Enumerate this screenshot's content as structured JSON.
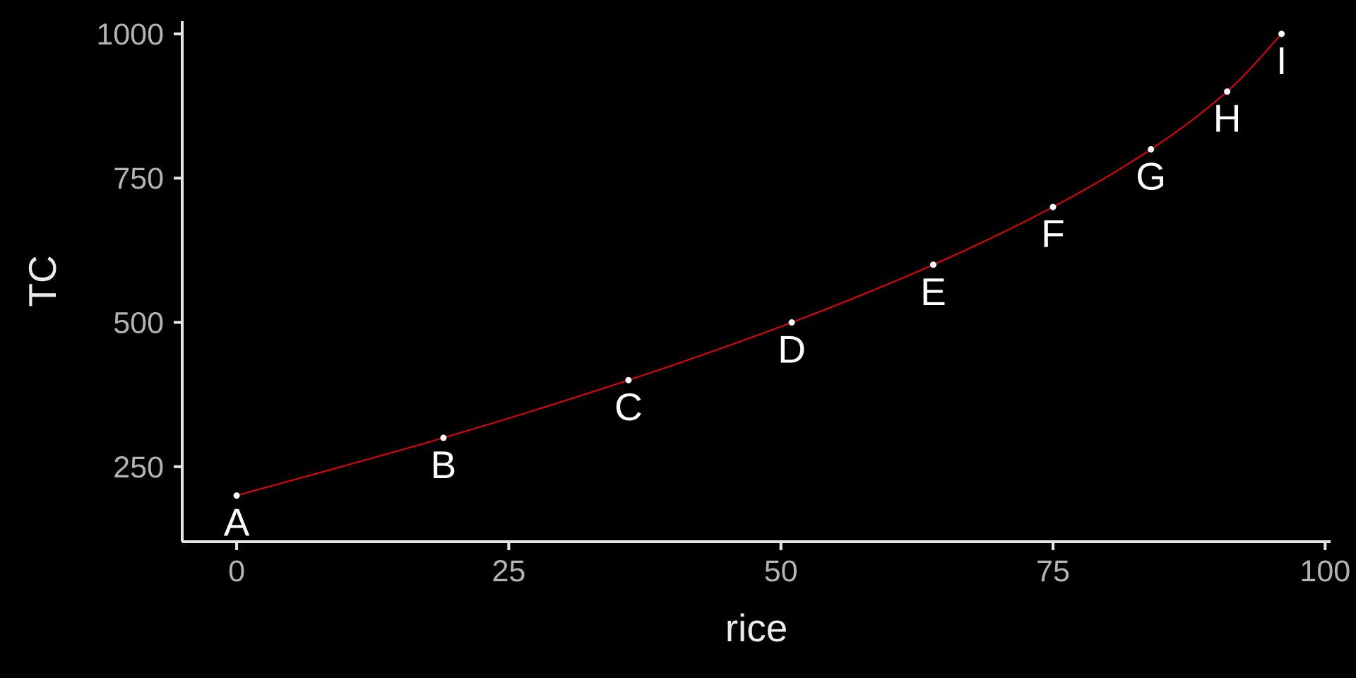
{
  "chart_data": {
    "type": "line",
    "title": "",
    "xlabel": "rice",
    "ylabel": "TC",
    "xlim": [
      -5,
      100.5
    ],
    "ylim": [
      120,
      1022
    ],
    "x_ticks": [
      0,
      25,
      50,
      75,
      100
    ],
    "y_ticks": [
      250,
      500,
      750,
      1000
    ],
    "x_tick_labels": [
      "0",
      "25",
      "50",
      "75",
      "100"
    ],
    "y_tick_labels": [
      "250",
      "500",
      "750",
      "1000"
    ],
    "grid": false,
    "legend": "none",
    "colors": {
      "background": "#000000",
      "line": "#e8000b",
      "point": "#ffffff",
      "axis": "#e6e6e6",
      "tick_label": "#b3b3b3",
      "axis_title": "#ebebeb",
      "point_label": "#ffffff"
    },
    "points": [
      {
        "label": "A",
        "x": 0,
        "y": 200
      },
      {
        "label": "B",
        "x": 19,
        "y": 300
      },
      {
        "label": "C",
        "x": 36,
        "y": 400
      },
      {
        "label": "D",
        "x": 51,
        "y": 500
      },
      {
        "label": "E",
        "x": 64,
        "y": 600
      },
      {
        "label": "F",
        "x": 75,
        "y": 700
      },
      {
        "label": "G",
        "x": 84,
        "y": 800
      },
      {
        "label": "H",
        "x": 91,
        "y": 900
      },
      {
        "label": "I",
        "x": 96,
        "y": 1000
      }
    ]
  }
}
